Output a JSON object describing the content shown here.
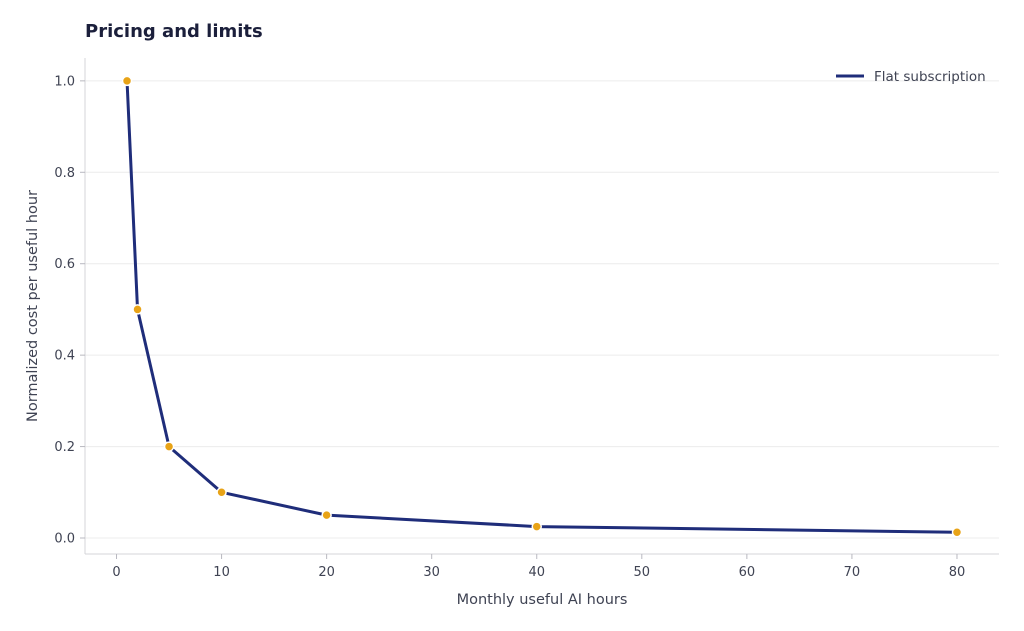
{
  "chart_data": {
    "type": "line",
    "title": "Pricing and limits",
    "xlabel": "Monthly useful AI hours",
    "ylabel": "Normalized cost per useful hour",
    "xlim": [
      -3,
      84
    ],
    "ylim": [
      -0.035,
      1.05
    ],
    "xticks": [
      0,
      10,
      20,
      30,
      40,
      50,
      60,
      70,
      80
    ],
    "yticks": [
      0.0,
      0.2,
      0.4,
      0.6,
      0.8,
      1.0
    ],
    "xtick_labels": [
      "0",
      "10",
      "20",
      "30",
      "40",
      "50",
      "60",
      "70",
      "80"
    ],
    "ytick_labels": [
      "0.0",
      "0.2",
      "0.4",
      "0.6",
      "0.8",
      "1.0"
    ],
    "grid": "horizontal",
    "legend_position": "top-right",
    "series": [
      {
        "name": "Flat subscription",
        "color": "#1f2d7a",
        "marker_color": "#e8a317",
        "x": [
          1,
          2,
          5,
          10,
          20,
          40,
          80
        ],
        "y": [
          1.0,
          0.5,
          0.2,
          0.1,
          0.05,
          0.025,
          0.0125
        ]
      }
    ]
  }
}
